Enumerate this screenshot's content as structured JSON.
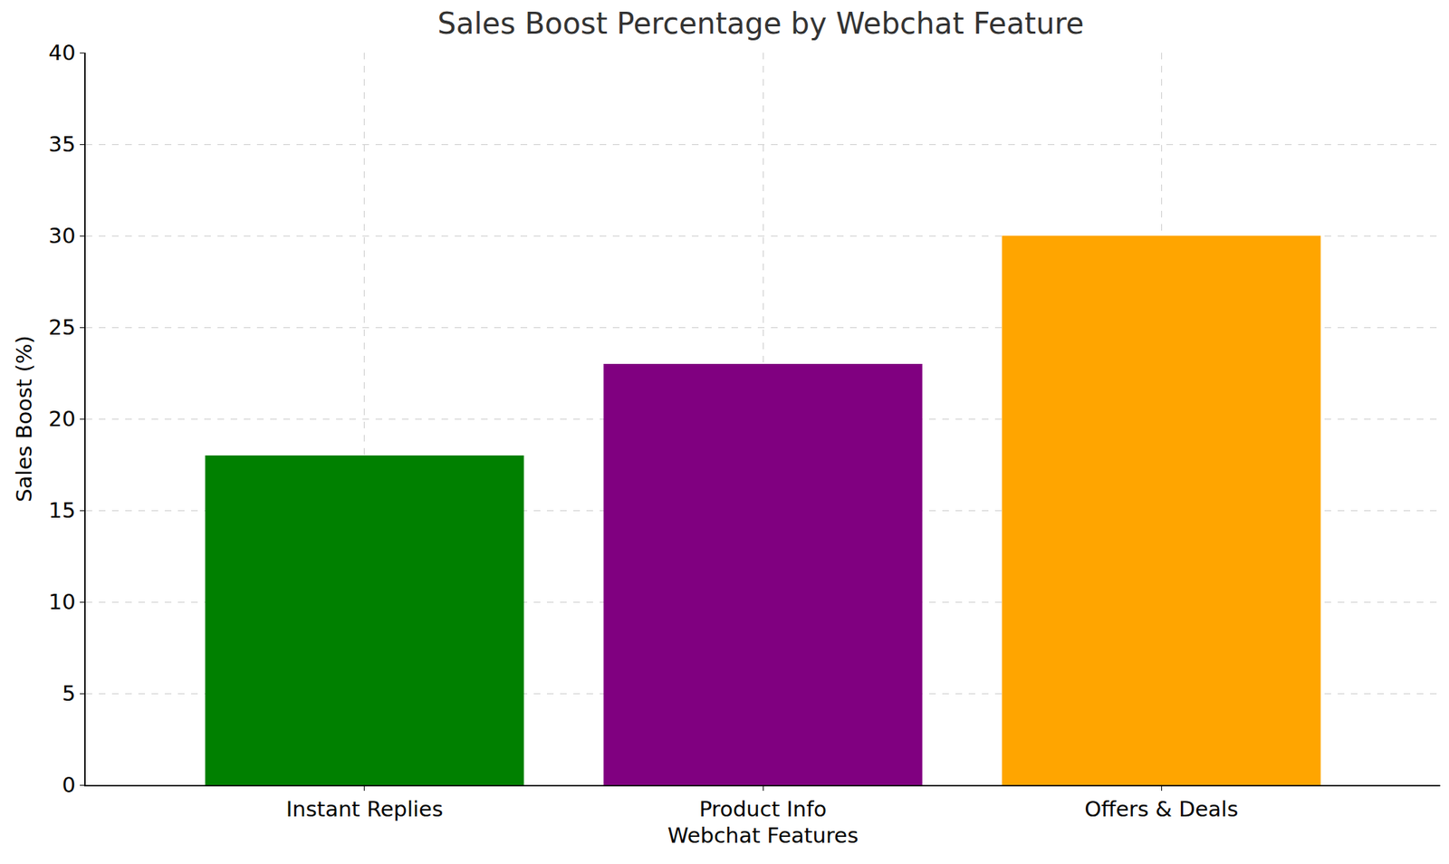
{
  "chart_data": {
    "type": "bar",
    "title": "Sales Boost Percentage by Webchat Feature",
    "x_label": "Webchat Features",
    "y_label": "Sales Boost (%)",
    "categories": [
      "Instant Replies",
      "Product Info",
      "Offers & Deals"
    ],
    "values": [
      18,
      23,
      30
    ],
    "colors": [
      "green",
      "purple",
      "orange"
    ],
    "ylim": [
      0,
      40
    ],
    "yticks": [
      0,
      5,
      10,
      15,
      20,
      25,
      30,
      35,
      40
    ],
    "grid": true
  }
}
